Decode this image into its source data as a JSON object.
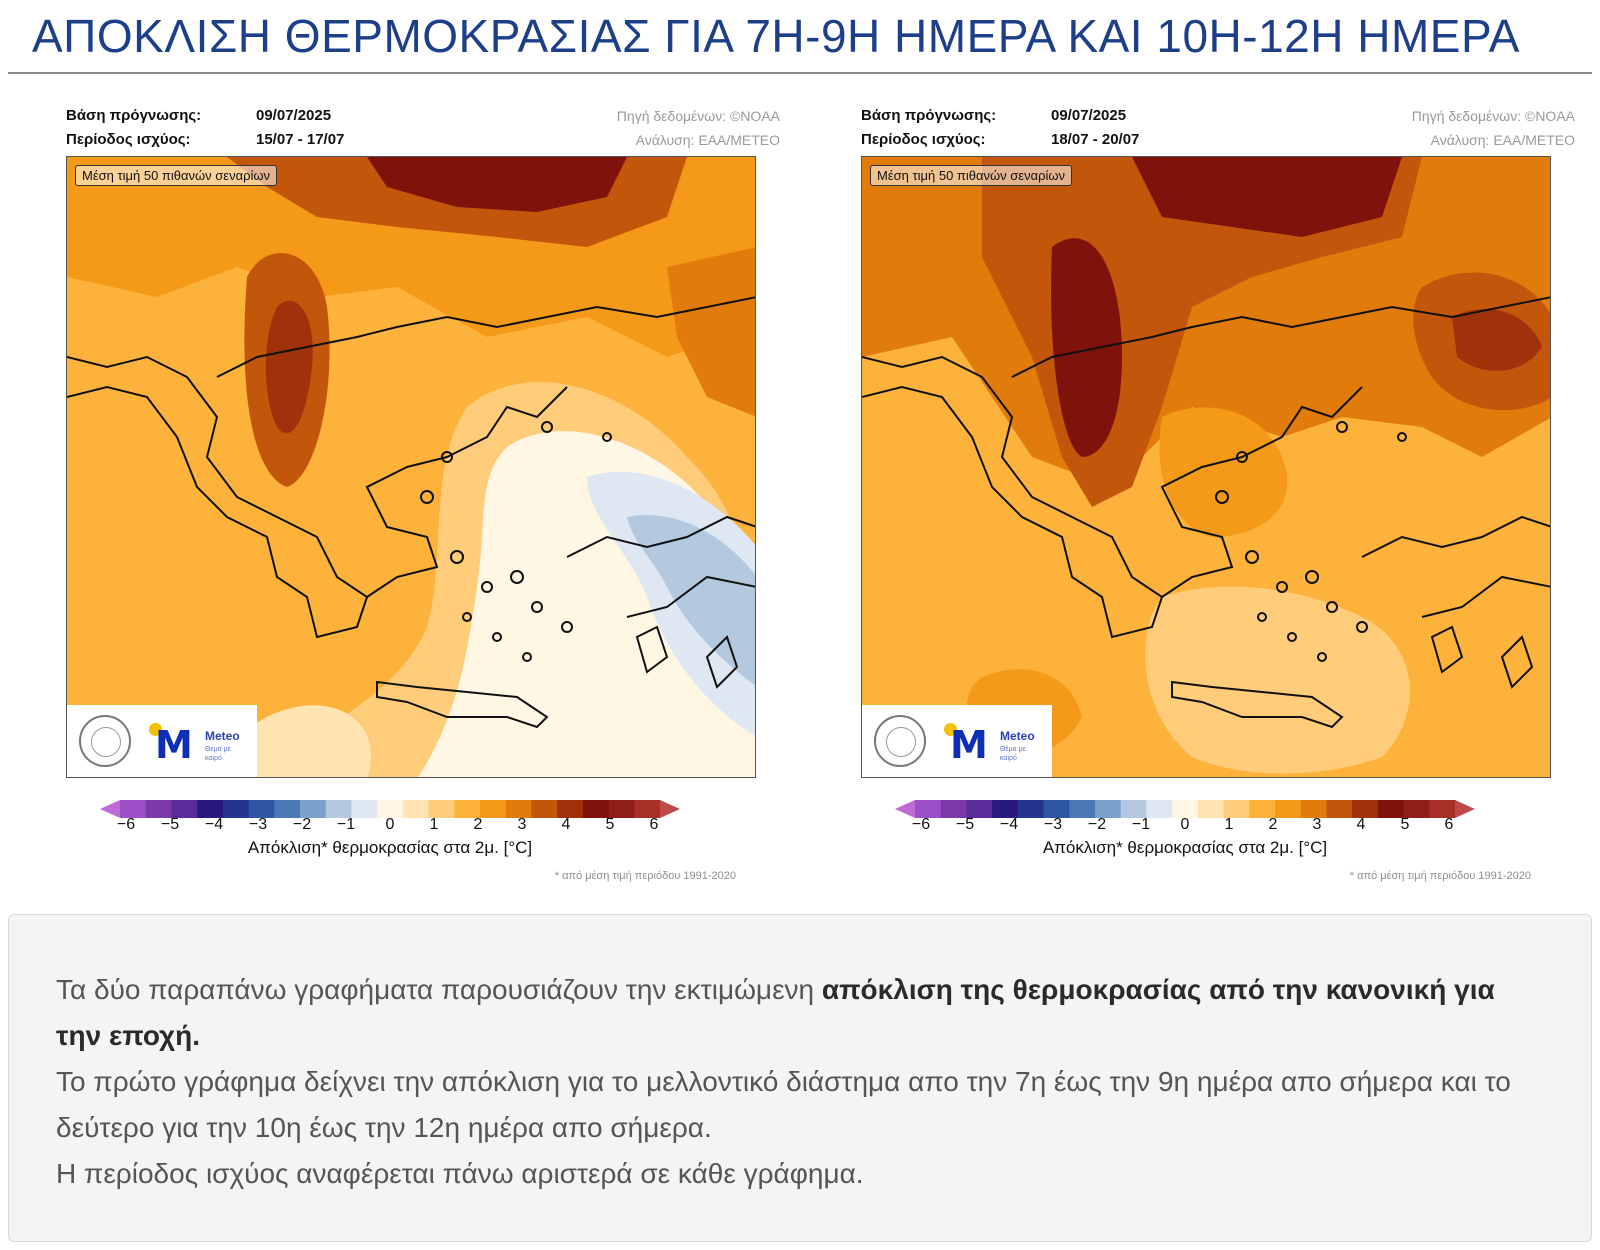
{
  "page": {
    "title": "ΑΠΟΚΛΙΣΗ ΘΕΡΜΟΚΡΑΣΙΑΣ ΓΙΑ 7Η-9Η ΗΜΕΡΑ ΚΑΙ 10Η-12Η ΗΜΕΡΑ"
  },
  "panels": [
    {
      "base_label": "Βάση πρόγνωσης:",
      "base_value": "09/07/2025",
      "period_label": "Περίοδος ισχύος:",
      "period_value": "15/07 - 17/07",
      "source": "Πηγή δεδομένων: ©NOAA",
      "analysis": "Ανάλυση: ΕΑΑ/METEO",
      "scenario_note": "Μέση τιμή 50 πιθανών σεναρίων",
      "logo_word": "Meteo",
      "logo_tag": "Θέμα με καιρό"
    },
    {
      "base_label": "Βάση πρόγνωσης:",
      "base_value": "09/07/2025",
      "period_label": "Περίοδος ισχύος:",
      "period_value": "18/07 - 20/07",
      "source": "Πηγή δεδομένων: ©NOAA",
      "analysis": "Ανάλυση: ΕΑΑ/METEO",
      "scenario_note": "Μέση τιμή 50 πιθανών σεναρίων",
      "logo_word": "Meteo",
      "logo_tag": "Θέμα με καιρό"
    }
  ],
  "colorbar": {
    "ticks": [
      "−6",
      "−5",
      "−4",
      "−3",
      "−2",
      "−1",
      "0",
      "1",
      "2",
      "3",
      "4",
      "5",
      "6"
    ],
    "label": "Απόκλιση* θερμοκρασίας στα 2μ. [°C]",
    "footnote": "* από μέση τιμή περιόδου 1991-2020",
    "colors": [
      "#c06ad6",
      "#9d4fc7",
      "#7b3aa8",
      "#5a2c9a",
      "#29197f",
      "#23358f",
      "#2f56a3",
      "#4a79b5",
      "#7aa0cc",
      "#b4c9e0",
      "#dfe7f2",
      "#fff6e4",
      "#ffe3b0",
      "#ffcc7a",
      "#fdb23c",
      "#f59a18",
      "#e07b0c",
      "#c2570b",
      "#a0320b",
      "#7f130c",
      "#8f1e16",
      "#a82e28",
      "#c04a4a"
    ]
  },
  "info": {
    "p1_normal": "Τα δύο παραπάνω γραφήματα παρουσιάζουν την εκτιμώμενη ",
    "p1_bold": "απόκλιση της θερμοκρασίας από την κανονική για την εποχή.",
    "p2": "Το πρώτο γράφημα δείχνει την απόκλιση για το μελλοντικό διάστημα απο την 7η έως την 9η ημέρα απο σήμερα και το δεύτερο για την 10η έως την 12η ημέρα απο σήμερα.",
    "p3": "Η περίοδος ισχύος αναφέρεται πάνω αριστερά σε κάθε γράφημα."
  }
}
